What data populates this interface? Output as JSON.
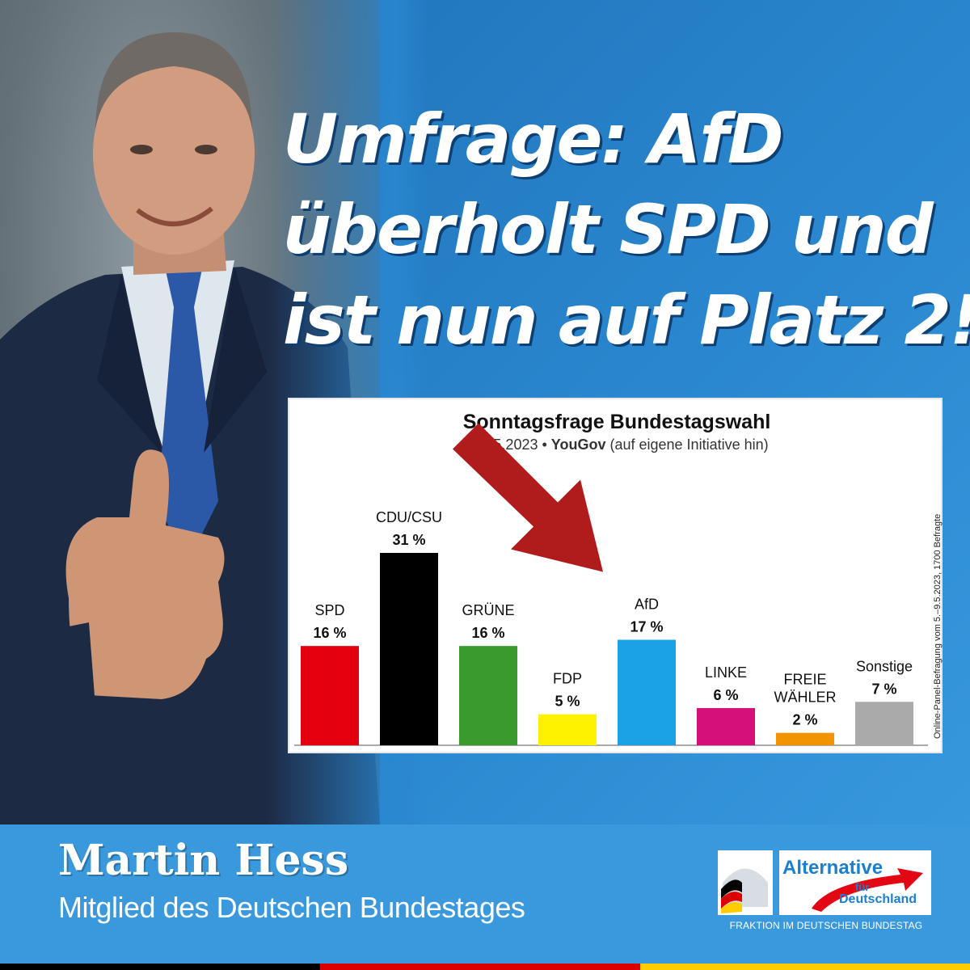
{
  "headline": {
    "line1": "Umfrage: AfD",
    "line2": "überholt SPD und",
    "line3": "ist nun auf Platz 2!"
  },
  "chart_data": {
    "type": "bar",
    "title": "Sonntagsfrage Bundestagswahl",
    "subtitle_date": "12.05.2023 •",
    "subtitle_source": "YouGov",
    "subtitle_note": "(auf eigene Initiative hin)",
    "side_note": "Online-Panel-Befragung vom 5.–9.5.2023, 1700 Befragte",
    "categories": [
      "SPD",
      "CDU/CSU",
      "GRÜNE",
      "FDP",
      "AfD",
      "LINKE",
      "FREIE WÄHLER",
      "Sonstige"
    ],
    "category_lines": [
      [
        "SPD"
      ],
      [
        "CDU/CSU"
      ],
      [
        "GRÜNE"
      ],
      [
        "FDP"
      ],
      [
        "AfD"
      ],
      [
        "LINKE"
      ],
      [
        "FREIE",
        "WÄHLER"
      ],
      [
        "Sonstige"
      ]
    ],
    "values": [
      16,
      31,
      16,
      5,
      17,
      6,
      2,
      7
    ],
    "value_labels": [
      "16 %",
      "31 %",
      "16 %",
      "5 %",
      "17 %",
      "6 %",
      "2 %",
      "7 %"
    ],
    "colors": [
      "#e3000f",
      "#000000",
      "#3a9a2e",
      "#fff200",
      "#1aa1e6",
      "#d6107b",
      "#f29400",
      "#aaaaaa"
    ],
    "ylim": [
      0,
      31
    ],
    "highlight": "AfD",
    "arrow_color": "#b01c1c"
  },
  "footer": {
    "name": "Martin Hess",
    "role": "Mitglied des Deutschen Bundestages"
  },
  "logo": {
    "brand": "Alternative",
    "fuer": "für",
    "deutschland": "Deutschland",
    "fraktion": "FRAKTION IM DEUTSCHEN BUNDESTAG"
  }
}
